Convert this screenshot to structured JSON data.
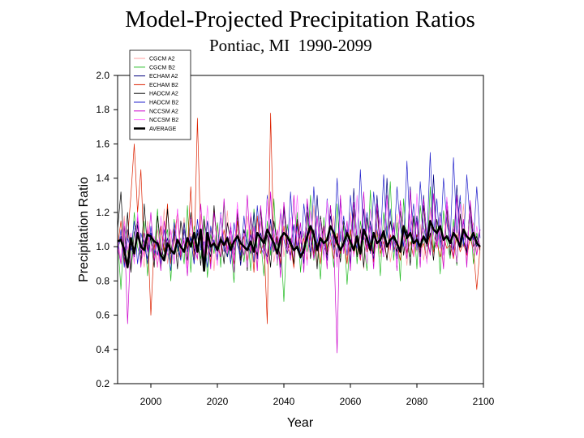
{
  "chart_data": {
    "type": "line",
    "title": "Model-Projected Precipitation Ratios",
    "subtitle": "Pontiac, MI  1990-2099",
    "xlabel": "Year",
    "ylabel": "Precipitation Ratio",
    "xlim": [
      1990,
      2100
    ],
    "ylim": [
      0.2,
      2.0
    ],
    "xticks": [
      2000,
      2020,
      2040,
      2060,
      2080,
      2100
    ],
    "yticks": [
      0.2,
      0.4,
      0.6,
      0.8,
      1.0,
      1.2,
      1.4,
      1.6,
      1.8,
      2.0
    ],
    "legend_position": "top-left",
    "series": [
      {
        "name": "CGCM A2",
        "color": "#ff9f9f",
        "width": 0.7,
        "values": [
          1.02,
          0.92,
          1.18,
          0.95,
          1.08,
          0.9,
          1.12,
          1.0,
          0.88,
          1.15,
          1.04,
          0.93,
          1.1,
          0.97,
          1.22,
          0.9,
          1.05,
          1.13,
          0.94,
          1.0,
          1.17,
          0.89,
          1.08,
          1.02,
          0.92,
          1.19,
          1.05,
          0.95,
          1.1,
          0.86,
          1.14,
          1.0,
          0.97,
          1.21,
          0.93,
          1.06,
          1.1,
          0.9,
          1.02,
          1.18,
          0.95,
          1.07,
          0.88,
          1.15,
          1.03,
          0.96,
          1.12,
          0.91,
          1.04,
          1.2,
          0.94,
          1.08,
          1.0,
          0.87,
          1.16,
          1.05,
          0.93,
          1.11,
          0.98,
          1.24,
          0.9,
          1.06,
          1.13,
          0.95,
          1.01,
          1.18,
          0.89,
          1.09,
          1.03,
          0.92,
          1.2,
          1.05,
          0.96,
          1.11,
          0.87,
          1.15,
          1.01,
          0.98,
          1.22,
          0.94,
          1.07,
          1.12,
          0.91,
          1.03,
          1.19,
          0.96,
          1.08,
          0.89,
          1.16,
          1.04,
          0.97,
          1.13,
          0.92,
          1.05,
          1.21,
          0.95,
          1.09,
          1.01,
          0.88,
          1.17,
          1.06,
          0.94,
          1.12,
          0.99,
          1.25,
          0.91,
          1.07,
          1.14,
          0.96,
          1.02
        ]
      },
      {
        "name": "CGCM B2",
        "color": "#22bb22",
        "width": 0.7,
        "values": [
          1.05,
          0.75,
          1.12,
          0.98,
          0.86,
          1.2,
          1.0,
          0.92,
          1.15,
          0.83,
          1.08,
          0.95,
          1.22,
          0.88,
          1.03,
          1.1,
          0.8,
          1.16,
          0.97,
          1.05,
          0.9,
          1.24,
          0.85,
          1.12,
          1.0,
          0.93,
          1.18,
          0.82,
          1.07,
          0.96,
          1.14,
          0.88,
          1.26,
          0.94,
          1.02,
          0.79,
          1.18,
          1.05,
          0.91,
          1.1,
          0.86,
          1.22,
          0.98,
          1.04,
          0.83,
          1.15,
          0.95,
          1.28,
          0.89,
          1.06,
          0.68,
          1.13,
          1.0,
          0.9,
          1.2,
          0.85,
          1.09,
          0.97,
          1.3,
          0.92,
          1.04,
          0.81,
          1.17,
          0.99,
          1.08,
          0.88,
          1.25,
          0.94,
          1.12,
          0.78,
          1.06,
          1.22,
          0.9,
          1.15,
          1.02,
          0.86,
          1.33,
          0.96,
          1.1,
          0.83,
          1.2,
          1.05,
          1.38,
          0.92,
          1.14,
          0.8,
          1.28,
          1.0,
          0.94,
          1.18,
          0.87,
          1.24,
          1.06,
          0.91,
          1.35,
          0.98,
          1.12,
          0.84,
          1.21,
          1.03,
          0.93,
          1.16,
          0.89,
          1.26,
          1.04,
          0.97,
          1.18,
          0.9,
          1.08,
          1.0
        ]
      },
      {
        "name": "ECHAM A2",
        "color": "#000080",
        "width": 0.7,
        "values": [
          0.98,
          1.06,
          0.92,
          1.1,
          1.0,
          0.94,
          1.13,
          0.96,
          1.04,
          0.9,
          1.08,
          1.01,
          0.95,
          1.12,
          0.97,
          1.05,
          0.91,
          1.09,
          1.02,
          0.93,
          1.14,
          0.98,
          1.06,
          0.9,
          1.1,
          1.0,
          0.95,
          1.15,
          0.97,
          1.04,
          0.92,
          1.18,
          1.01,
          0.94,
          1.12,
          0.98,
          1.07,
          0.89,
          1.1,
          1.03,
          0.96,
          1.2,
          0.93,
          1.08,
          1.0,
          0.94,
          1.16,
          0.97,
          1.05,
          0.88,
          1.22,
          1.02,
          0.95,
          1.13,
          0.98,
          1.09,
          0.9,
          1.25,
          1.04,
          0.96,
          1.3,
          0.99,
          1.12,
          0.92,
          1.18,
          1.06,
          0.94,
          1.28,
          1.0,
          1.1,
          0.9,
          1.34,
          1.03,
          0.95,
          1.22,
          0.98,
          1.15,
          0.91,
          1.3,
          1.05,
          0.96,
          1.4,
          1.0,
          1.12,
          0.93,
          1.26,
          1.07,
          0.97,
          1.35,
          1.02,
          1.18,
          0.94,
          1.3,
          1.05,
          0.96,
          1.42,
          1.01,
          1.2,
          0.95,
          1.28,
          1.08,
          0.98,
          1.36,
          1.03,
          1.15,
          0.96,
          1.25,
          1.06,
          1.0,
          1.1
        ]
      },
      {
        "name": "ECHAM B2",
        "color": "#dd2200",
        "width": 0.7,
        "values": [
          1.0,
          1.15,
          0.9,
          1.05,
          1.3,
          1.6,
          1.2,
          1.45,
          0.95,
          1.1,
          0.6,
          1.02,
          0.88,
          1.12,
          0.97,
          1.25,
          0.9,
          1.05,
          1.2,
          0.93,
          1.1,
          0.98,
          1.35,
          0.92,
          1.75,
          1.04,
          0.96,
          1.08,
          0.9,
          1.22,
          1.0,
          0.94,
          1.1,
          0.97,
          1.03,
          0.9,
          1.15,
          0.98,
          1.06,
          0.92,
          1.1,
          0.85,
          1.18,
          0.96,
          1.04,
          0.55,
          1.78,
          0.98,
          1.06,
          0.9,
          1.12,
          0.96,
          1.02,
          0.88,
          1.14,
          0.97,
          1.05,
          0.92,
          1.1,
          0.95,
          1.03,
          0.9,
          1.12,
          0.97,
          1.04,
          0.93,
          1.08,
          0.96,
          1.02,
          0.9,
          1.1,
          0.95,
          1.04,
          0.92,
          1.08,
          0.97,
          1.02,
          0.91,
          1.1,
          0.96,
          1.03,
          0.93,
          1.07,
          0.98,
          1.02,
          0.92,
          1.09,
          0.96,
          1.03,
          0.94,
          1.07,
          0.98,
          1.02,
          0.92,
          1.08,
          0.97,
          1.03,
          0.94,
          1.06,
          0.99,
          1.01,
          0.93,
          1.07,
          0.97,
          1.02,
          0.95,
          1.05,
          0.98,
          0.75,
          1.0
        ]
      },
      {
        "name": "HADCM A2",
        "color": "#000000",
        "width": 0.7,
        "values": [
          1.1,
          1.32,
          0.95,
          1.2,
          0.85,
          1.08,
          1.15,
          0.9,
          1.25,
          0.98,
          1.05,
          0.88,
          1.18,
          1.0,
          0.93,
          1.22,
          0.96,
          1.1,
          0.87,
          1.15,
          1.02,
          0.92,
          1.2,
          0.97,
          1.08,
          0.89,
          1.16,
          1.01,
          0.94,
          1.24,
          0.98,
          1.06,
          0.9,
          1.14,
          1.03,
          0.95,
          1.2,
          0.92,
          1.1,
          0.86,
          1.18,
          1.0,
          0.95,
          1.22,
          0.97,
          1.07,
          0.88,
          1.15,
          1.02,
          0.94,
          1.25,
          0.98,
          1.05,
          0.9,
          1.16,
          1.03,
          0.96,
          1.2,
          0.93,
          1.1,
          0.87,
          1.18,
          1.01,
          0.95,
          1.24,
          0.99,
          1.06,
          0.91,
          1.15,
          1.04,
          0.97,
          1.2,
          0.94,
          1.1,
          0.88,
          1.17,
          1.02,
          0.96,
          1.23,
          0.99,
          1.07,
          0.92,
          1.15,
          1.04,
          0.97,
          1.21,
          0.95,
          1.1,
          0.89,
          1.18,
          1.03,
          0.96,
          1.24,
          1.0,
          1.08,
          0.92,
          1.16,
          1.05,
          0.98,
          1.22,
          0.95,
          1.11,
          0.9,
          1.19,
          1.03,
          0.97,
          1.25,
          1.0,
          1.06,
          0.98
        ]
      },
      {
        "name": "HADCM B2",
        "color": "#2222cc",
        "width": 0.7,
        "values": [
          0.95,
          1.1,
          0.88,
          1.05,
          0.98,
          1.15,
          0.9,
          1.08,
          1.0,
          0.93,
          1.12,
          0.96,
          1.04,
          0.9,
          1.1,
          0.98,
          0.86,
          1.14,
          1.0,
          0.92,
          1.1,
          0.97,
          1.05,
          0.9,
          1.16,
          0.98,
          1.03,
          0.88,
          1.12,
          1.0,
          0.94,
          1.2,
          0.97,
          1.06,
          0.9,
          1.14,
          1.01,
          0.95,
          1.18,
          0.98,
          1.07,
          0.91,
          1.24,
          1.0,
          0.95,
          1.3,
          0.98,
          1.1,
          0.92,
          1.2,
          1.04,
          0.96,
          1.32,
          1.0,
          1.12,
          0.93,
          1.25,
          1.06,
          0.97,
          1.35,
          1.02,
          1.15,
          0.94,
          1.28,
          1.07,
          0.98,
          1.4,
          1.03,
          1.18,
          0.95,
          1.3,
          1.08,
          0.99,
          1.45,
          1.04,
          1.2,
          0.96,
          1.32,
          1.1,
          1.0,
          1.42,
          1.05,
          1.22,
          0.97,
          1.35,
          1.12,
          1.0,
          1.5,
          1.06,
          1.25,
          0.98,
          1.38,
          1.12,
          1.02,
          1.55,
          1.07,
          1.28,
          0.99,
          1.4,
          1.14,
          1.03,
          1.52,
          1.08,
          1.3,
          1.0,
          1.42,
          1.15,
          1.04,
          1.35,
          1.05
        ]
      },
      {
        "name": "NCCSM A2",
        "color": "#cc00cc",
        "width": 0.7,
        "values": [
          1.0,
          0.9,
          1.12,
          0.55,
          1.05,
          0.95,
          1.18,
          0.88,
          1.08,
          0.97,
          1.2,
          0.92,
          1.04,
          0.86,
          1.15,
          0.99,
          1.1,
          0.9,
          1.22,
          0.95,
          1.05,
          0.83,
          1.17,
          1.0,
          0.93,
          1.25,
          0.96,
          1.08,
          0.87,
          1.2,
          1.02,
          0.94,
          1.28,
          0.98,
          1.1,
          0.85,
          1.22,
          1.03,
          0.95,
          1.3,
          0.97,
          1.12,
          0.86,
          1.24,
          1.04,
          0.9,
          1.32,
          0.98,
          1.1,
          0.82,
          1.26,
          1.05,
          0.92,
          1.3,
          0.99,
          1.14,
          0.85,
          1.28,
          1.06,
          0.93,
          1.18,
          0.97,
          1.12,
          0.87,
          1.24,
          1.03,
          0.38,
          1.3,
          0.96,
          1.15,
          0.86,
          1.26,
          1.05,
          0.93,
          1.32,
          0.99,
          1.12,
          0.87,
          1.25,
          1.04,
          0.94,
          1.3,
          0.98,
          1.14,
          0.86,
          1.27,
          1.06,
          0.93,
          1.33,
          1.0,
          1.15,
          0.88,
          1.28,
          1.06,
          0.95,
          1.31,
          0.99,
          1.13,
          0.87,
          1.25,
          1.05,
          0.94,
          1.3,
          1.0,
          1.16,
          0.88,
          1.27,
          1.07,
          0.95,
          1.1
        ]
      },
      {
        "name": "NCCSM B2",
        "color": "#ff66ff",
        "width": 0.7,
        "values": [
          1.05,
          0.92,
          1.15,
          0.98,
          1.08,
          0.9,
          1.2,
          1.0,
          0.94,
          1.12,
          0.97,
          1.06,
          0.88,
          1.18,
          1.02,
          0.95,
          1.1,
          0.91,
          1.22,
          0.99,
          1.05,
          0.87,
          1.16,
          1.01,
          0.96,
          1.13,
          0.93,
          1.24,
          1.0,
          1.07,
          0.89,
          1.19,
          1.03,
          0.96,
          1.14,
          0.92,
          1.26,
          1.01,
          1.08,
          0.88,
          1.2,
          1.04,
          0.97,
          1.15,
          0.93,
          1.28,
          1.0,
          1.1,
          0.9,
          1.22,
          1.05,
          0.98,
          1.17,
          0.94,
          1.3,
          1.02,
          1.09,
          0.89,
          1.21,
          1.04,
          0.97,
          1.16,
          0.92,
          1.27,
          1.01,
          1.1,
          0.88,
          1.23,
          1.05,
          0.98,
          1.18,
          0.94,
          1.3,
          1.02,
          1.09,
          0.9,
          1.22,
          1.06,
          0.99,
          1.17,
          0.95,
          1.28,
          1.03,
          1.1,
          0.89,
          1.24,
          1.06,
          0.98,
          1.19,
          0.94,
          1.31,
          1.03,
          1.11,
          0.9,
          1.23,
          1.07,
          0.99,
          1.18,
          0.95,
          1.29,
          1.04,
          1.12,
          0.91,
          1.25,
          1.07,
          1.0,
          1.2,
          0.96,
          1.12,
          1.0
        ]
      },
      {
        "name": "AVERAGE",
        "color": "#000000",
        "width": 2.6,
        "values": [
          1.03,
          1.04,
          0.98,
          0.88,
          1.05,
          0.96,
          1.08,
          1.0,
          0.98,
          1.07,
          1.06,
          1.03,
          1.02,
          0.95,
          0.92,
          1.02,
          0.98,
          0.96,
          1.04,
          1.0,
          0.97,
          1.05,
          1.0,
          1.08,
          0.97,
          1.1,
          0.86,
          1.08,
          1.0,
          1.02,
          0.98,
          1.04,
          1.01,
          1.05,
          0.98,
          1.03,
          1.06,
          1.02,
          1.0,
          0.98,
          1.03,
          0.97,
          1.08,
          1.05,
          1.02,
          1.1,
          1.06,
          1.02,
          0.96,
          1.05,
          1.08,
          1.06,
          1.02,
          0.98,
          1.0,
          0.94,
          0.98,
          1.06,
          1.12,
          1.07,
          0.98,
          1.05,
          1.02,
          1.04,
          1.12,
          1.08,
          1.02,
          0.98,
          1.02,
          1.08,
          1.03,
          0.98,
          1.06,
          0.96,
          1.1,
          1.05,
          0.98,
          1.08,
          1.02,
          1.04,
          1.09,
          1.0,
          1.04,
          1.06,
          1.02,
          0.97,
          1.12,
          1.05,
          1.08,
          1.02,
          1.04,
          1.0,
          1.06,
          1.02,
          1.15,
          1.1,
          1.08,
          1.12,
          1.04,
          1.06,
          1.02,
          1.08,
          1.05,
          1.0,
          1.1,
          1.06,
          1.04,
          1.08,
          1.02,
          1.0
        ]
      }
    ]
  }
}
